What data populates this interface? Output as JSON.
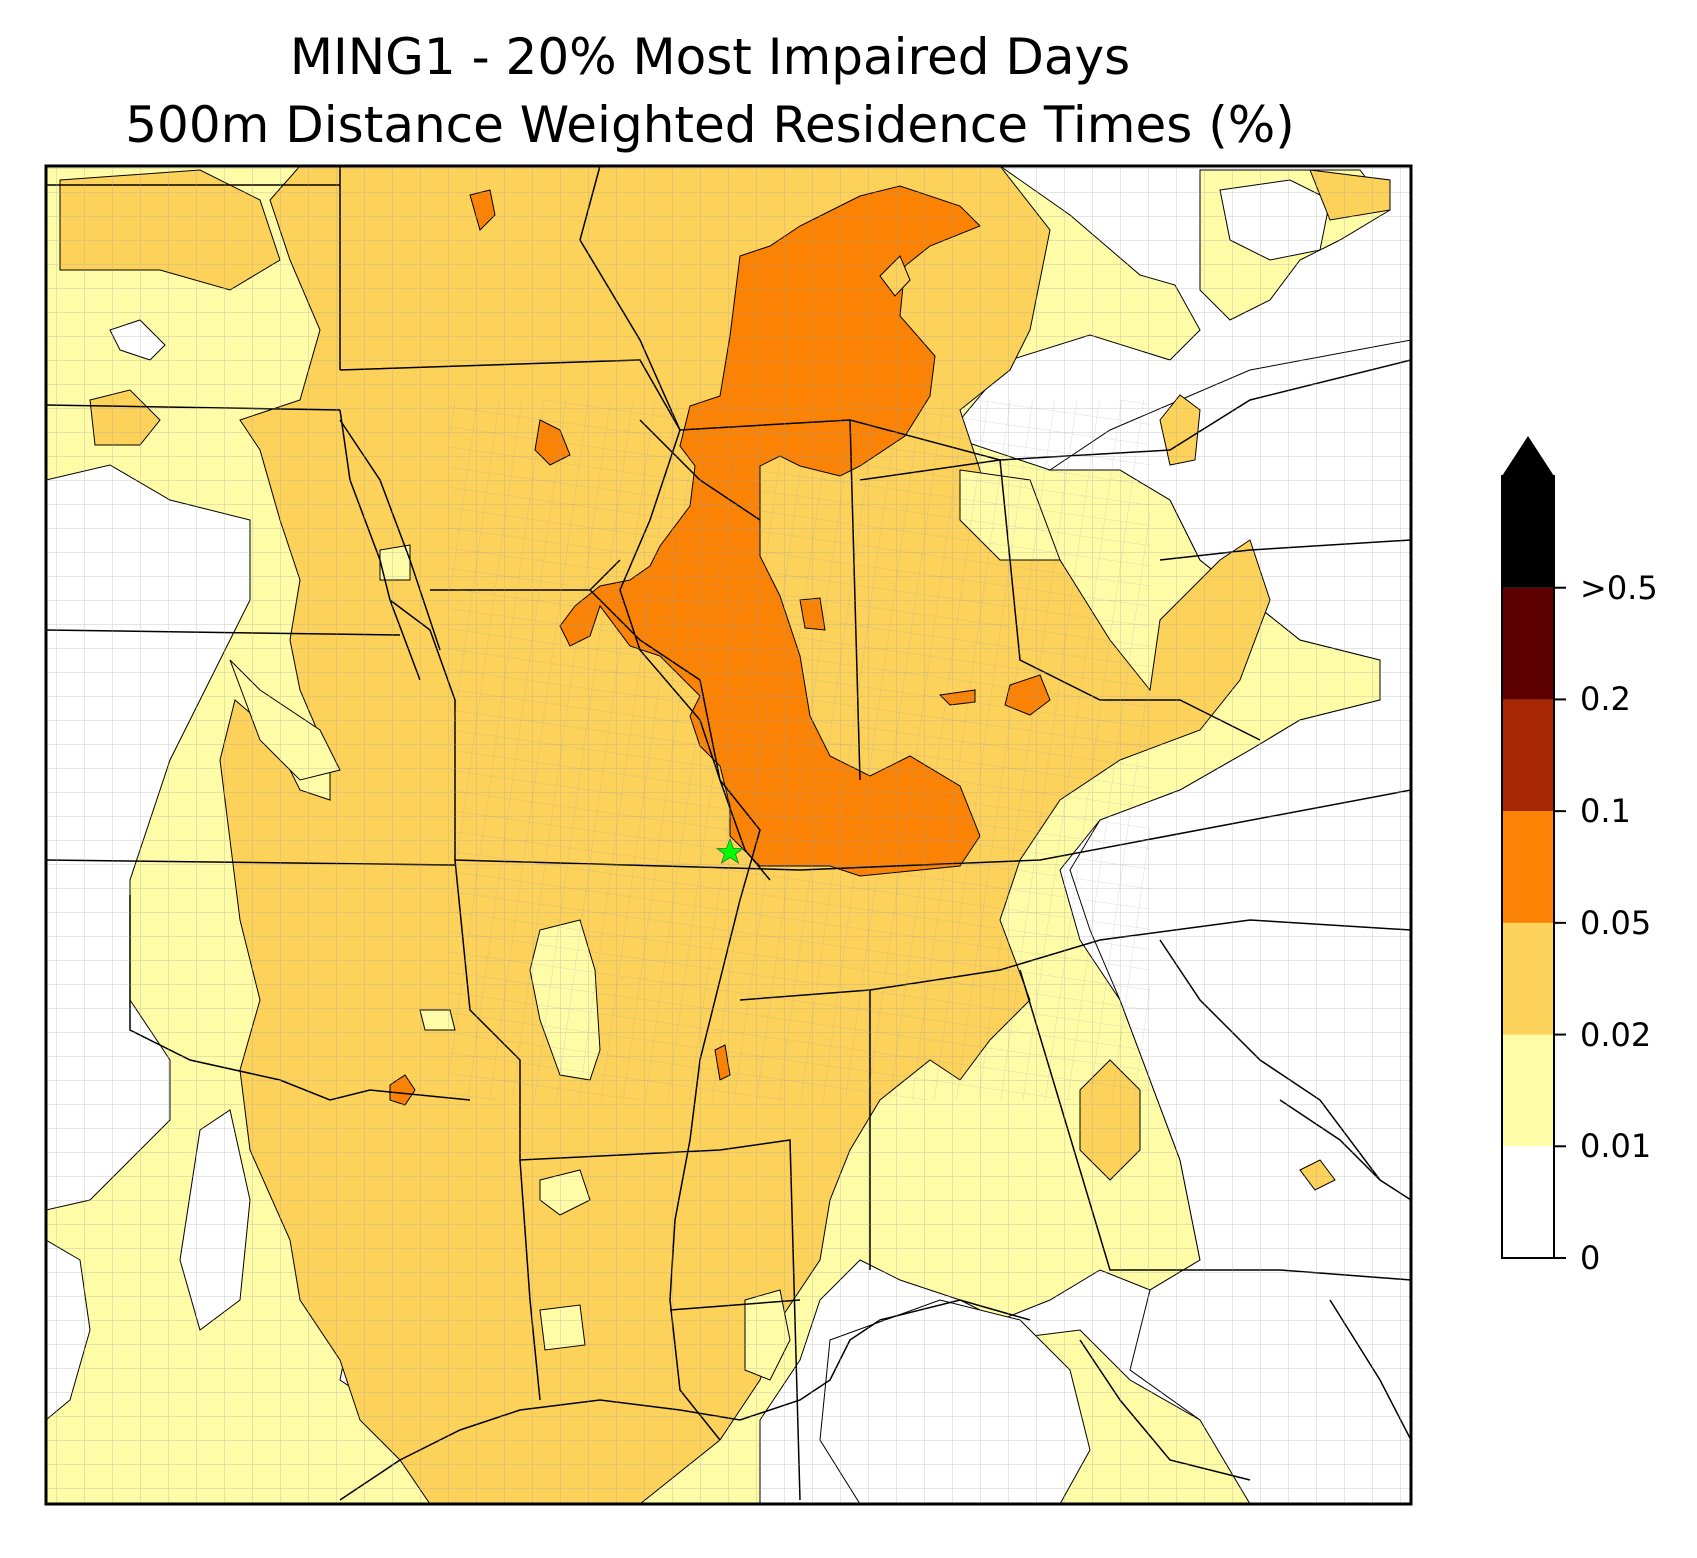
{
  "title": {
    "line1": "MING1 - 20% Most Impaired Days",
    "line2": "500m Distance Weighted Residence Times (%)"
  },
  "colorbar": {
    "levels": [
      "0",
      "0.01",
      "0.02",
      "0.05",
      "0.1",
      "0.2",
      ">0.5"
    ],
    "colors": [
      "#ffffff",
      "#fffca8",
      "#fdd25a",
      "#fc8204",
      "#a72604",
      "#5c0000",
      "#000000"
    ],
    "extend": "max"
  },
  "palette": {
    "frame": "#000000",
    "state_border": "#000000",
    "county_border": "#a0a0a0",
    "receptor_marker": "#00ff00"
  },
  "receptor": {
    "name": "MING1",
    "marker": "green-star-icon"
  },
  "legend_placement": "right"
}
